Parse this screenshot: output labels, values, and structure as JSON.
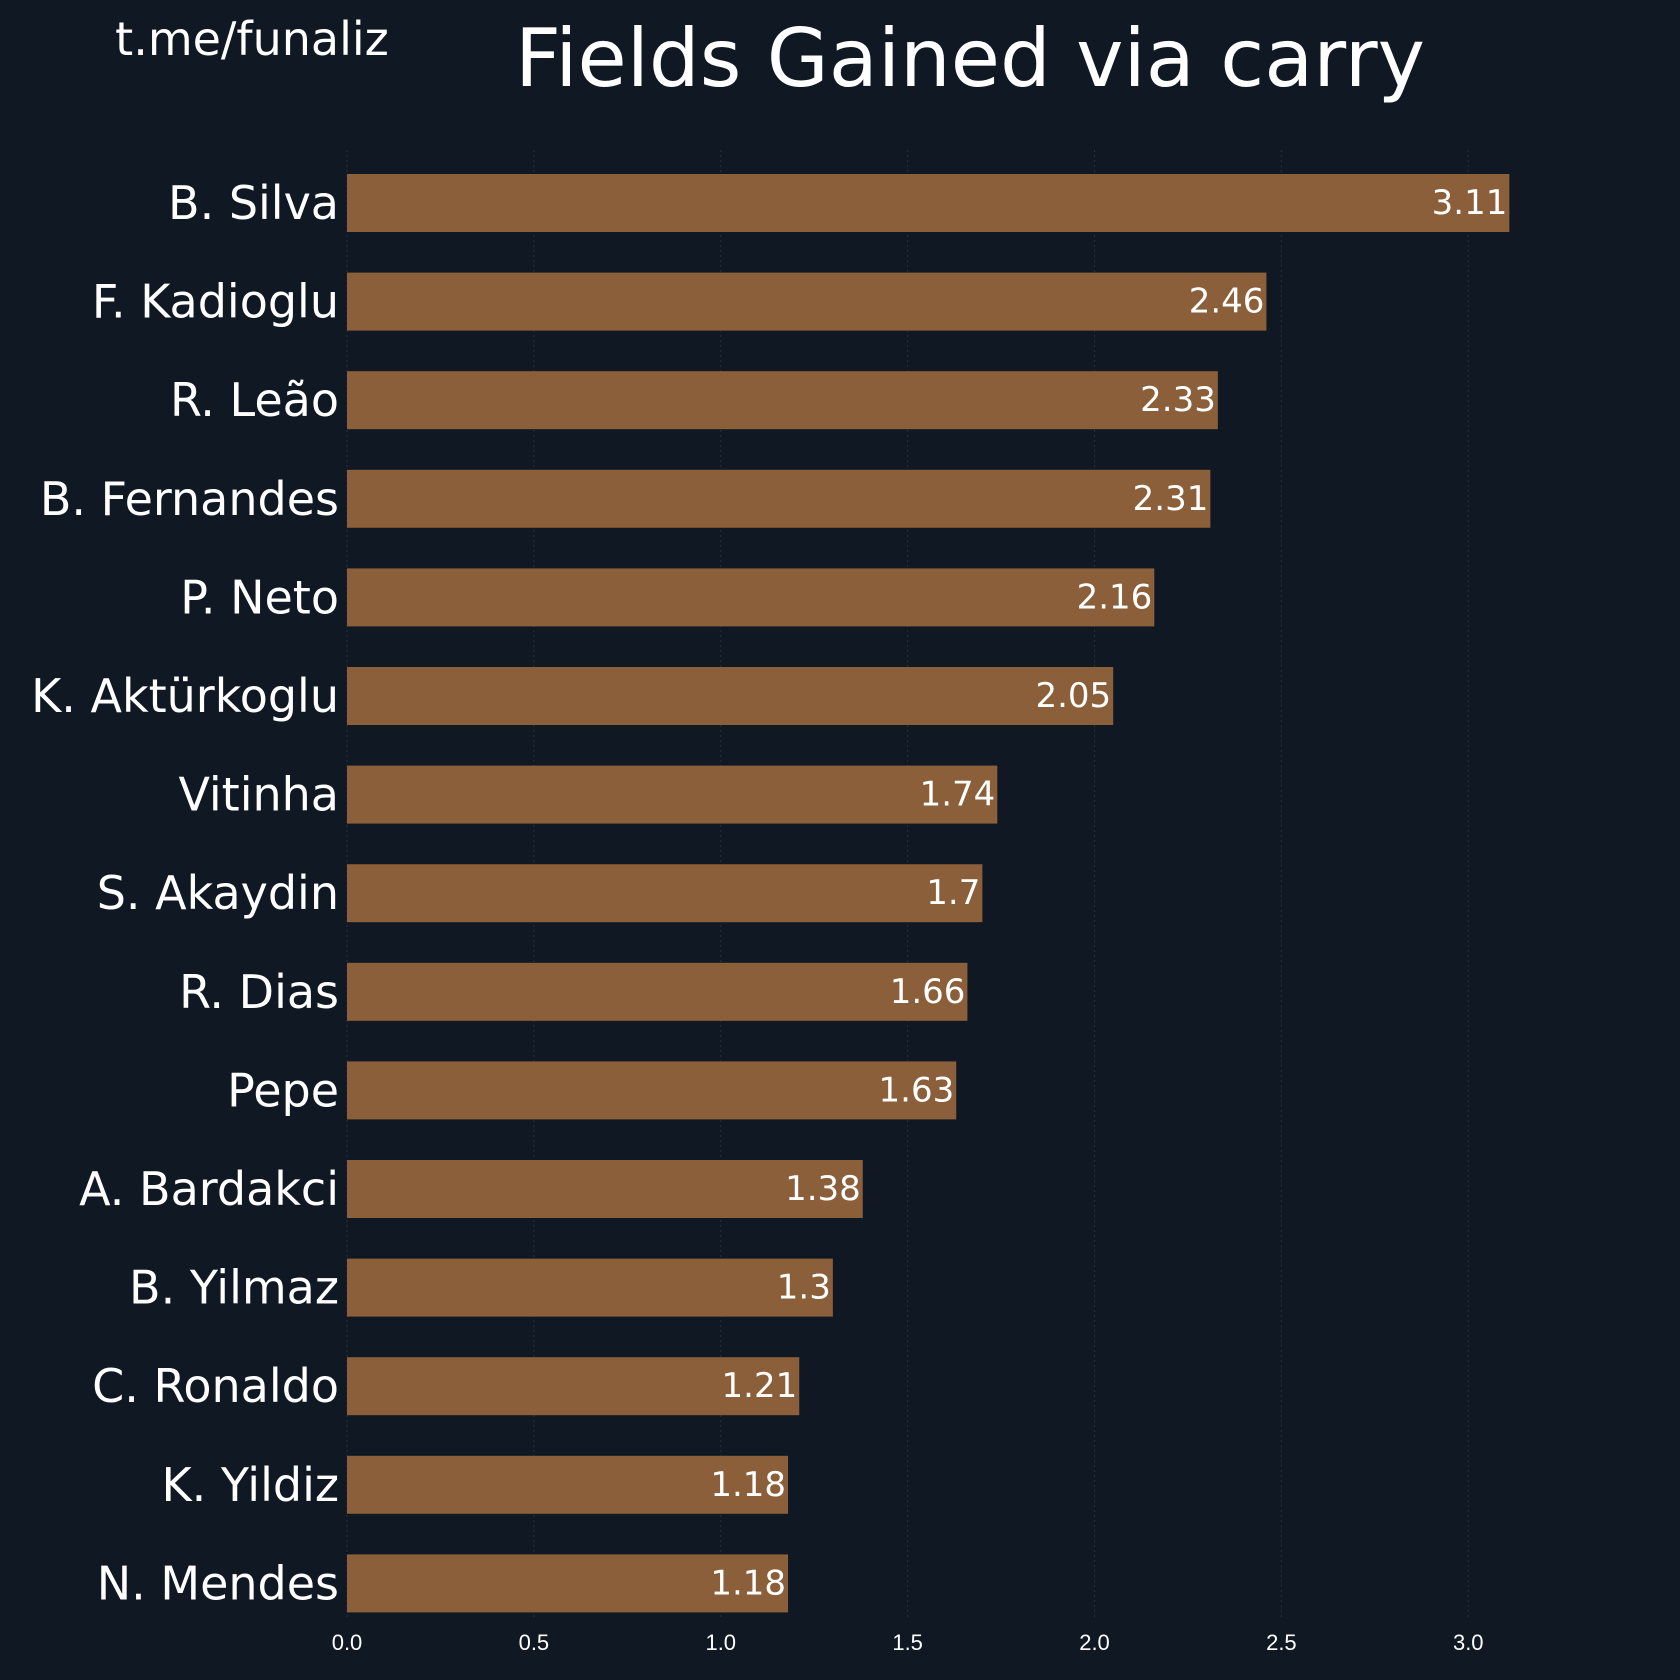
{
  "watermark": "t.me/funaliz",
  "colors": {
    "background": "#101923",
    "bar": "#8a5f39",
    "text": "#ffffff"
  },
  "chart_data": {
    "type": "bar",
    "orientation": "horizontal",
    "title": "Fields Gained via carry",
    "xlabel": "",
    "ylabel": "",
    "categories": [
      "B. Silva",
      "F. Kadioglu",
      "R. Leão",
      "B. Fernandes",
      "P. Neto",
      "K. Aktürkoglu",
      "Vitinha",
      "S. Akaydin",
      "R. Dias",
      "Pepe",
      "A. Bardakci",
      "B. Yilmaz",
      "C. Ronaldo",
      "K. Yildiz",
      "N. Mendes"
    ],
    "values": [
      3.11,
      2.46,
      2.33,
      2.31,
      2.16,
      2.05,
      1.74,
      1.7,
      1.66,
      1.63,
      1.38,
      1.3,
      1.21,
      1.18,
      1.18
    ],
    "value_labels": [
      "3.11",
      "2.46",
      "2.33",
      "2.31",
      "2.16",
      "2.05",
      "1.74",
      "1.7",
      "1.66",
      "1.63",
      "1.38",
      "1.3",
      "1.21",
      "1.18",
      "1.18"
    ],
    "xlim": [
      0,
      3.2
    ],
    "xticks": [
      0.0,
      0.5,
      1.0,
      1.5,
      2.0,
      2.5,
      3.0
    ],
    "xtick_labels": [
      "0.0",
      "0.5",
      "1.0",
      "1.5",
      "2.0",
      "2.5",
      "3.0"
    ],
    "grid": "vertical, faint dotted",
    "legend": "none"
  }
}
